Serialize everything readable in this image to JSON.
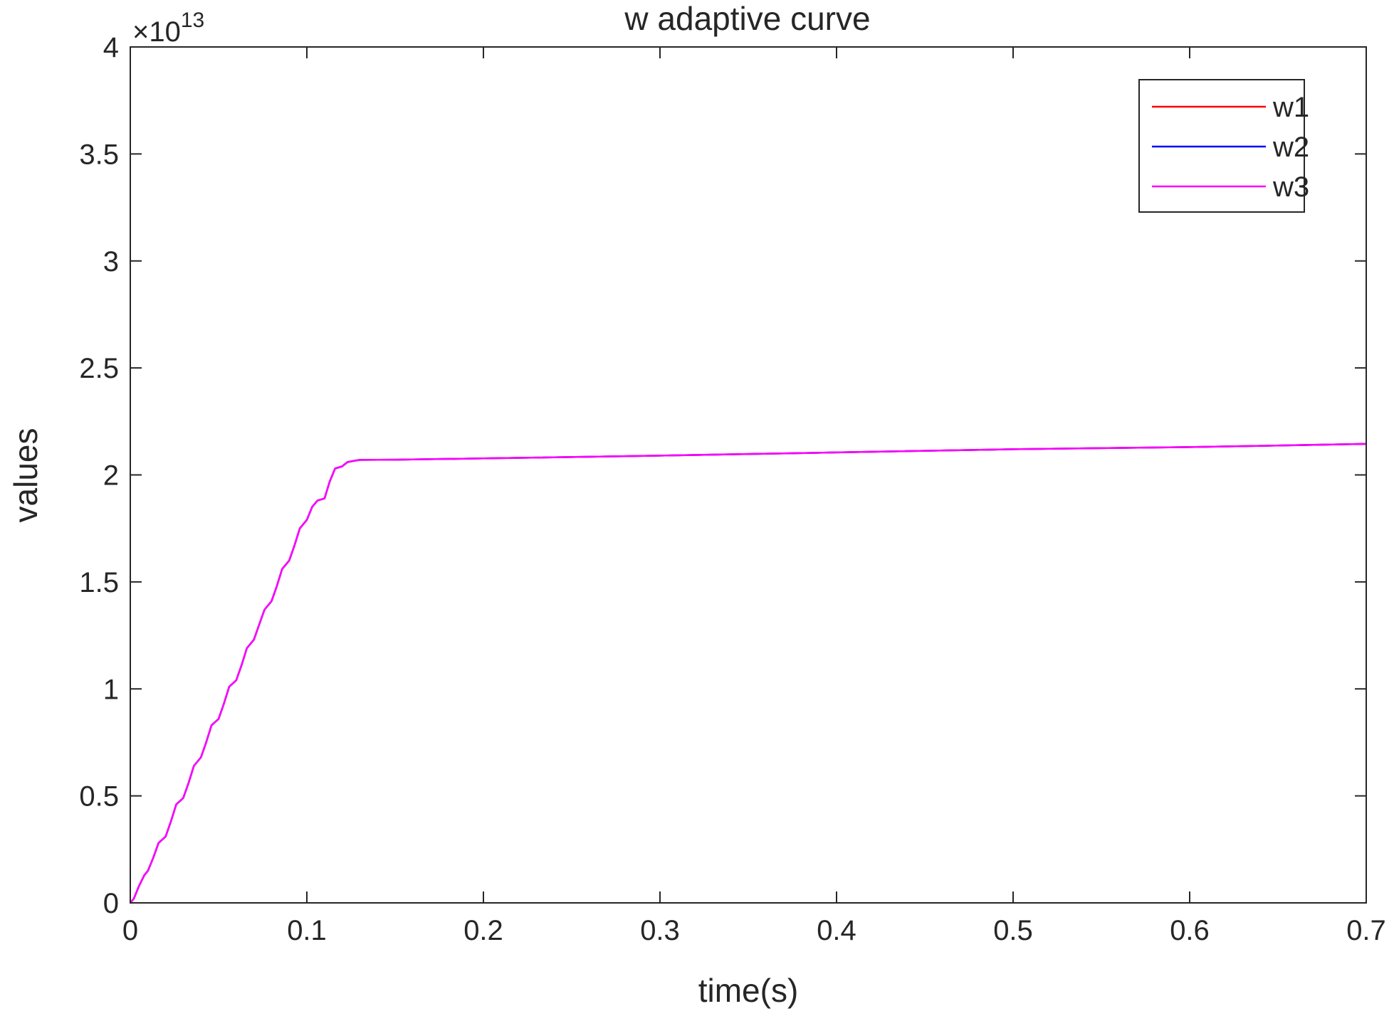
{
  "chart_data": {
    "type": "line",
    "title": "w adaptive curve",
    "xlabel": "time(s)",
    "ylabel": "values",
    "xlim": [
      0,
      0.7
    ],
    "ylim": [
      0,
      40000000000000.0
    ],
    "x_ticks": [
      0,
      0.1,
      0.2,
      0.3,
      0.4,
      0.5,
      0.6,
      0.7
    ],
    "x_tick_labels": [
      "0",
      "0.1",
      "0.2",
      "0.3",
      "0.4",
      "0.5",
      "0.6",
      "0.7"
    ],
    "y_ticks": [
      0,
      5000000000000.0,
      10000000000000.0,
      15000000000000.0,
      20000000000000.0,
      25000000000000.0,
      30000000000000.0,
      35000000000000.0,
      40000000000000.0
    ],
    "y_tick_labels": [
      "0",
      "0.5",
      "1",
      "1.5",
      "2",
      "2.5",
      "3",
      "3.5",
      "4"
    ],
    "y_exponent_base": "×10",
    "y_exponent_power": "13",
    "grid": false,
    "legend_position": "top-right",
    "x": [
      0,
      0.002,
      0.005,
      0.008,
      0.01,
      0.013,
      0.016,
      0.02,
      0.023,
      0.026,
      0.03,
      0.033,
      0.036,
      0.04,
      0.043,
      0.046,
      0.05,
      0.053,
      0.056,
      0.06,
      0.063,
      0.066,
      0.07,
      0.073,
      0.076,
      0.08,
      0.083,
      0.086,
      0.09,
      0.093,
      0.096,
      0.1,
      0.103,
      0.106,
      0.11,
      0.113,
      0.116,
      0.12,
      0.123,
      0.126,
      0.13,
      0.15,
      0.2,
      0.3,
      0.4,
      0.5,
      0.6,
      0.7
    ],
    "series": [
      {
        "name": "w1",
        "color": "#ff0000",
        "values": [
          0,
          200000000000.0,
          800000000000.0,
          1300000000000.0,
          1500000000000.0,
          2100000000000.0,
          2800000000000.0,
          3100000000000.0,
          3800000000000.0,
          4600000000000.0,
          4900000000000.0,
          5600000000000.0,
          6400000000000.0,
          6800000000000.0,
          7500000000000.0,
          8300000000000.0,
          8600000000000.0,
          9300000000000.0,
          10100000000000.0,
          10400000000000.0,
          11100000000000.0,
          11900000000000.0,
          12300000000000.0,
          13000000000000.0,
          13700000000000.0,
          14100000000000.0,
          14800000000000.0,
          15600000000000.0,
          16000000000000.0,
          16700000000000.0,
          17500000000000.0,
          17900000000000.0,
          18500000000000.0,
          18800000000000.0,
          18900000000000.0,
          19700000000000.0,
          20300000000000.0,
          20400000000000.0,
          20600000000000.0,
          20650000000000.0,
          20700000000000.0,
          20710000000000.0,
          20770000000000.0,
          20900000000000.0,
          21050000000000.0,
          21200000000000.0,
          21300000000000.0,
          21450000000000.0
        ]
      },
      {
        "name": "w2",
        "color": "#0000ff",
        "values": [
          0,
          200000000000.0,
          800000000000.0,
          1300000000000.0,
          1500000000000.0,
          2100000000000.0,
          2800000000000.0,
          3100000000000.0,
          3800000000000.0,
          4600000000000.0,
          4900000000000.0,
          5600000000000.0,
          6400000000000.0,
          6800000000000.0,
          7500000000000.0,
          8300000000000.0,
          8600000000000.0,
          9300000000000.0,
          10100000000000.0,
          10400000000000.0,
          11100000000000.0,
          11900000000000.0,
          12300000000000.0,
          13000000000000.0,
          13700000000000.0,
          14100000000000.0,
          14800000000000.0,
          15600000000000.0,
          16000000000000.0,
          16700000000000.0,
          17500000000000.0,
          17900000000000.0,
          18500000000000.0,
          18800000000000.0,
          18900000000000.0,
          19700000000000.0,
          20300000000000.0,
          20400000000000.0,
          20600000000000.0,
          20650000000000.0,
          20700000000000.0,
          20710000000000.0,
          20770000000000.0,
          20900000000000.0,
          21050000000000.0,
          21200000000000.0,
          21300000000000.0,
          21450000000000.0
        ]
      },
      {
        "name": "w3",
        "color": "#ff00ff",
        "values": [
          0,
          200000000000.0,
          800000000000.0,
          1300000000000.0,
          1500000000000.0,
          2100000000000.0,
          2800000000000.0,
          3100000000000.0,
          3800000000000.0,
          4600000000000.0,
          4900000000000.0,
          5600000000000.0,
          6400000000000.0,
          6800000000000.0,
          7500000000000.0,
          8300000000000.0,
          8600000000000.0,
          9300000000000.0,
          10100000000000.0,
          10400000000000.0,
          11100000000000.0,
          11900000000000.0,
          12300000000000.0,
          13000000000000.0,
          13700000000000.0,
          14100000000000.0,
          14800000000000.0,
          15600000000000.0,
          16000000000000.0,
          16700000000000.0,
          17500000000000.0,
          17900000000000.0,
          18500000000000.0,
          18800000000000.0,
          18900000000000.0,
          19700000000000.0,
          20300000000000.0,
          20400000000000.0,
          20600000000000.0,
          20650000000000.0,
          20700000000000.0,
          20710000000000.0,
          20770000000000.0,
          20900000000000.0,
          21050000000000.0,
          21200000000000.0,
          21300000000000.0,
          21450000000000.0
        ]
      }
    ]
  }
}
